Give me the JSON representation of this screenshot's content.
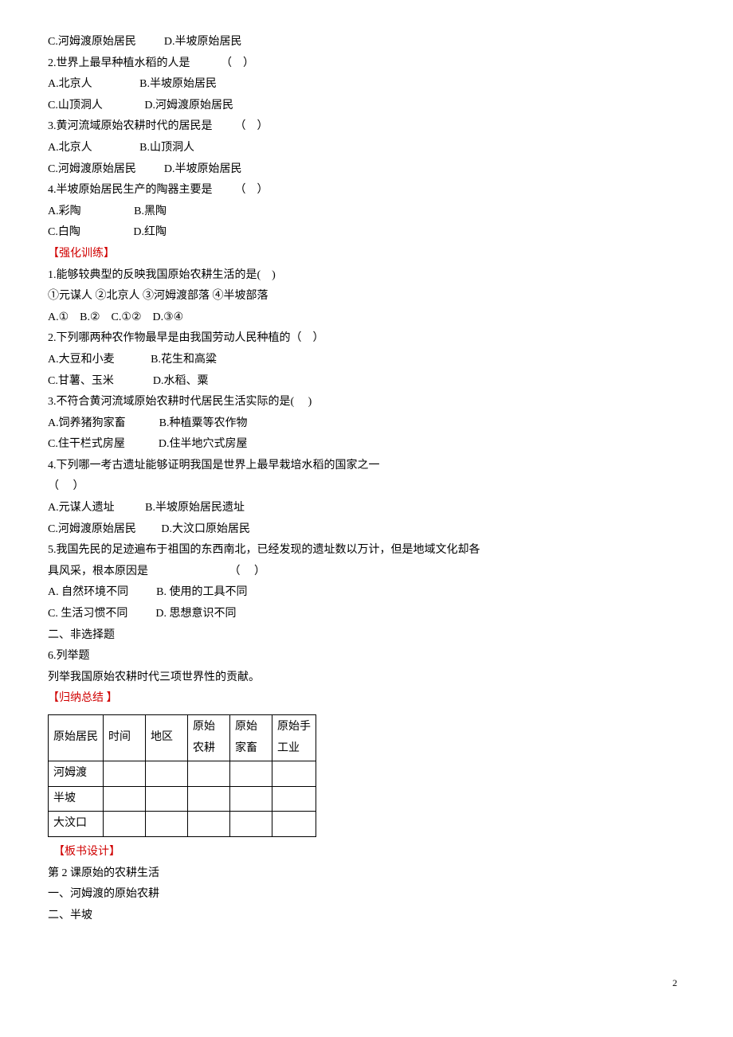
{
  "q1": {
    "optC": "C.河姆渡原始居民",
    "optD": "D.半坡原始居民"
  },
  "q2": {
    "stem": "2.世界上最早种植水稻的人是           （    ）",
    "optA": "A.北京人",
    "optB": "B.半坡原始居民",
    "optC": "C.山顶洞人",
    "optD": "D.河姆渡原始居民"
  },
  "q3": {
    "stem": "3.黄河流域原始农耕时代的居民是        （    ）",
    "optA": "A.北京人",
    "optB": "B.山顶洞人",
    "optC": "C.河姆渡原始居民",
    "optD": "D.半坡原始居民"
  },
  "q4": {
    "stem": "4.半坡原始居民生产的陶器主要是        （    ）",
    "optA": "A.彩陶",
    "optB": "B.黑陶",
    "optC": "C.白陶",
    "optD": "D.红陶"
  },
  "section_strengthen": "【强化训练】",
  "s1": {
    "stem": "1.能够较典型的反映我国原始农耕生活的是(    )",
    "items": "①元谋人 ②北京人 ③河姆渡部落 ④半坡部落",
    "opts": "A.①    B.②    C.①②    D.③④"
  },
  "s2": {
    "stem": "2.下列哪两种农作物最早是由我国劳动人民种植的（    ）",
    "optA": "A.大豆和小麦",
    "optB": "B.花生和高粱",
    "optC": "C.甘薯、玉米",
    "optD": "D.水稻、粟"
  },
  "s3": {
    "stem": "3.不符合黄河流域原始农耕时代居民生活实际的是(     )",
    "optA": "A.饲养猪狗家畜",
    "optB": "B.种植粟等农作物",
    "optC": "C.住干栏式房屋",
    "optD": "D.住半地穴式房屋"
  },
  "s4": {
    "stem": "4.下列哪一考古遗址能够证明我国是世界上最早栽培水稻的国家之一",
    "paren": "（     ）",
    "optA": "A.元谋人遗址",
    "optB": "B.半坡原始居民遗址",
    "optC": "C.河姆渡原始居民",
    "optD": "D.大汶口原始居民"
  },
  "s5": {
    "stem1": "5.我国先民的足迹遍布于祖国的东西南北，已经发现的遗址数以万计，但是地域文化却各",
    "stem2": "具风采，根本原因是                             （     ）",
    "optA": "A. 自然环境不同",
    "optB": "B. 使用的工具不同",
    "optC": "C. 生活习惯不同",
    "optD": "D. 思想意识不同"
  },
  "non_choice": "二、非选择题",
  "s6": {
    "num": "6.列举题",
    "text": "列举我国原始农耕时代三项世界性的贡献。"
  },
  "section_summary": "【归纳总结 】",
  "table": {
    "headers": {
      "c1a": "原始居民",
      "c2a": "时间",
      "c3a": "地区",
      "c4a": "原始",
      "c4b": "农耕",
      "c5a": "原始",
      "c5b": "家畜",
      "c6a": "原始手",
      "c6b": "工业"
    },
    "rows": {
      "r1": "河姆渡",
      "r2": "半坡",
      "r3": "大汶口"
    }
  },
  "section_board": "【板书设计】",
  "board": {
    "l1": "第 2 课原始的农耕生活",
    "l2": "一、河姆渡的原始农耕",
    "l3": "二、半坡"
  },
  "page_num": "2"
}
